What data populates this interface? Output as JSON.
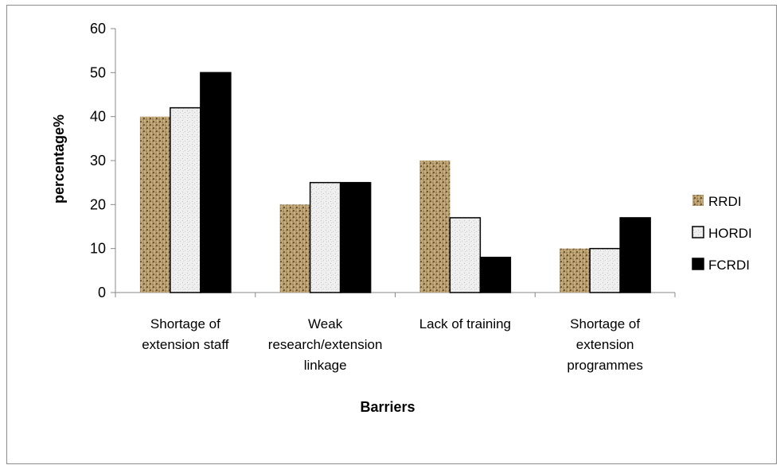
{
  "chart_data": {
    "type": "bar",
    "categories": [
      [
        "Shortage of",
        "extension staff"
      ],
      [
        "Weak",
        "research/extension",
        "linkage"
      ],
      [
        "Lack of training"
      ],
      [
        "Shortage of",
        "extension",
        "programmes"
      ]
    ],
    "series": [
      {
        "name": "RRDI",
        "values": [
          40,
          20,
          30,
          10
        ],
        "color": "#b59a6a",
        "pattern": "woven-tan"
      },
      {
        "name": "HORDI",
        "values": [
          42,
          25,
          17,
          10
        ],
        "color": "#eeeeee",
        "pattern": "speckled-white"
      },
      {
        "name": "FCRDI",
        "values": [
          50,
          25,
          8,
          17
        ],
        "color": "#000000",
        "pattern": "solid"
      }
    ],
    "xlabel": "Barriers",
    "ylabel": "percentage%",
    "ylim": [
      0,
      60
    ],
    "yticks": [
      "0",
      "10",
      "20",
      "30",
      "40",
      "50",
      "60"
    ],
    "grid": false,
    "legend": "right"
  }
}
